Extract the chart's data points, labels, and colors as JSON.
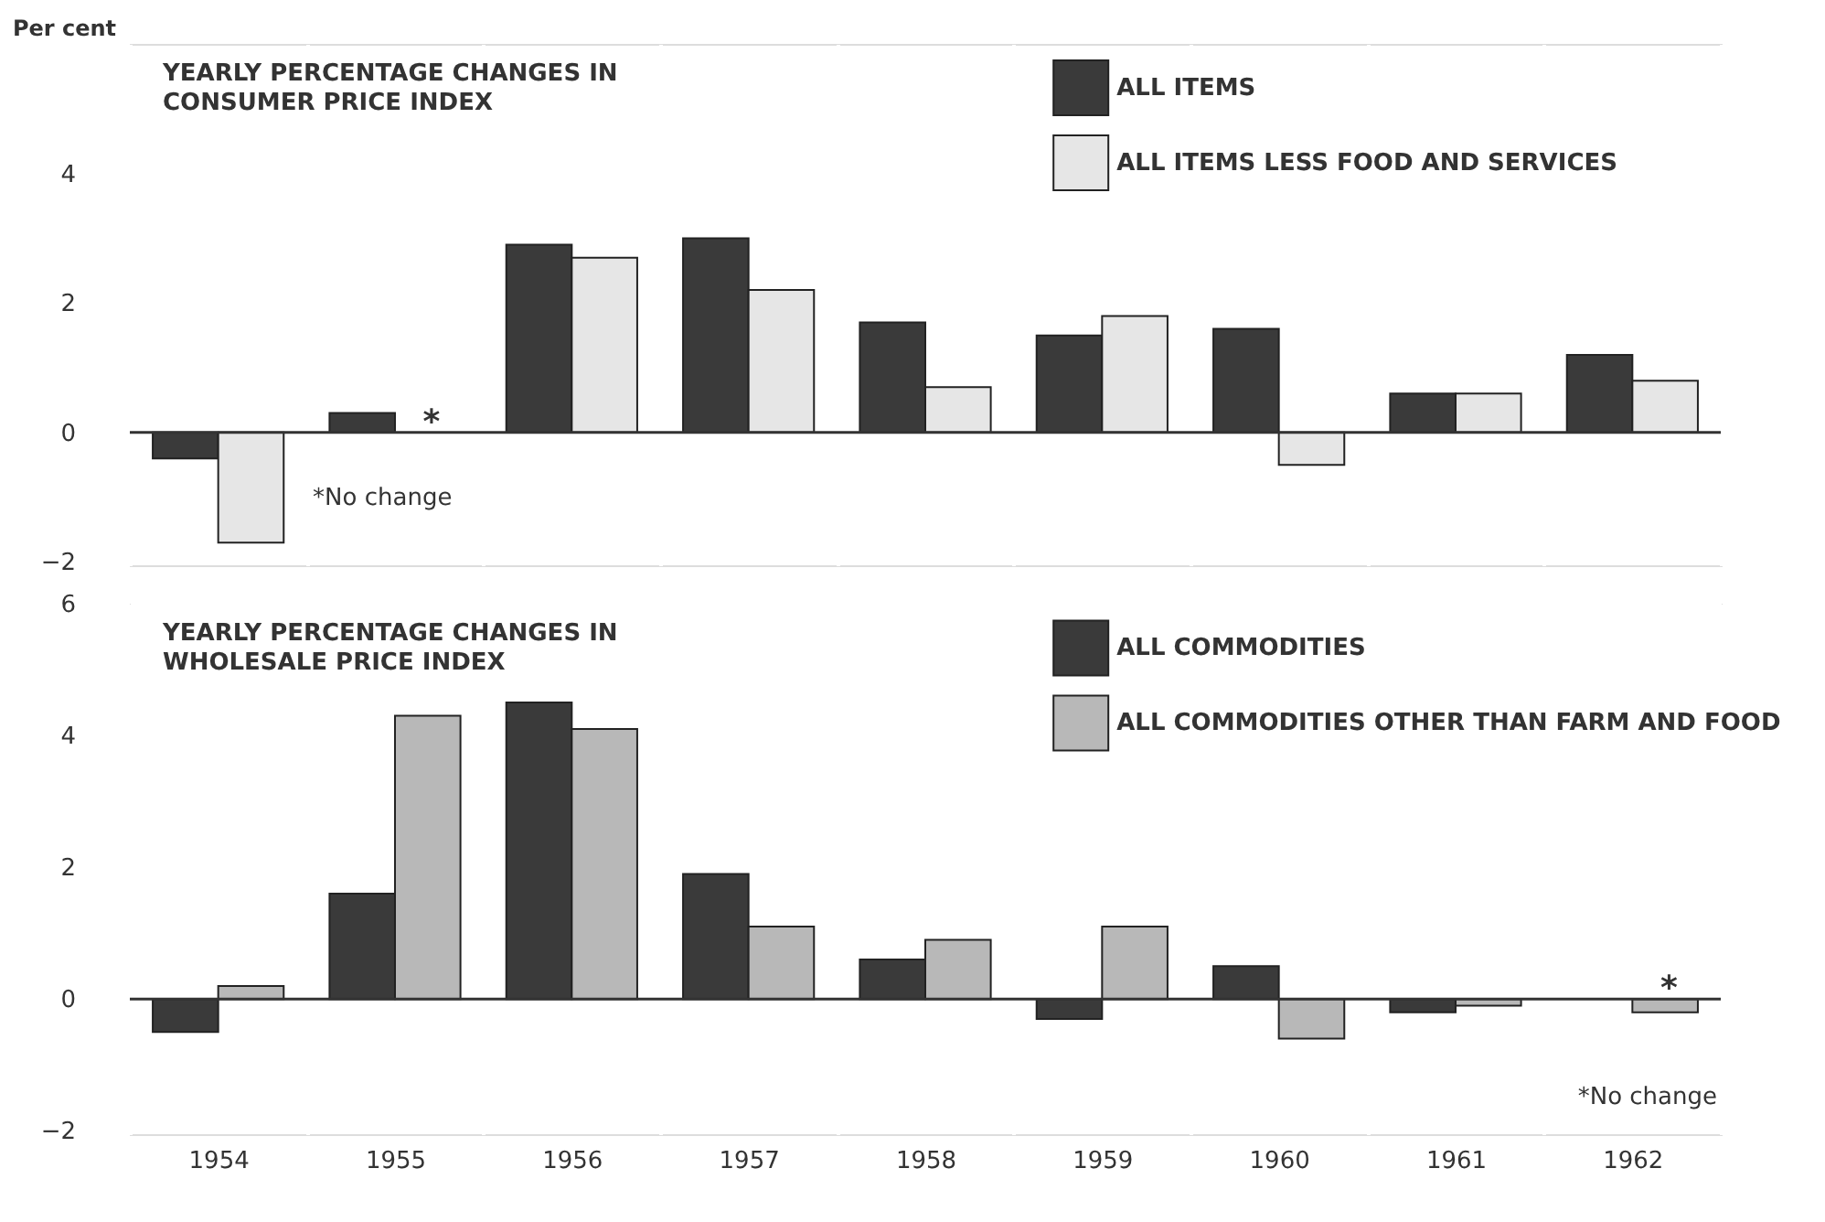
{
  "chart_data": [
    {
      "type": "bar",
      "title": "YEARLY PERCENTAGE CHANGES IN CONSUMER PRICE INDEX",
      "ylabel": "Per cent",
      "categories": [
        "1954",
        "1955",
        "1956",
        "1957",
        "1958",
        "1959",
        "1960",
        "1961",
        "1962"
      ],
      "series": [
        {
          "name": "ALL ITEMS",
          "color": "#3a3a3a",
          "values": [
            -0.4,
            0.3,
            2.9,
            3.0,
            1.7,
            1.5,
            1.6,
            0.6,
            1.2
          ]
        },
        {
          "name": "ALL ITEMS LESS FOOD AND SERVICES",
          "color": "#e6e6e6",
          "values": [
            -1.7,
            0,
            2.7,
            2.2,
            0.7,
            1.8,
            -0.5,
            0.6,
            0.8
          ]
        }
      ],
      "ylim": [
        -2.05,
        6
      ],
      "yticks": [
        -2,
        0,
        2,
        4
      ],
      "grid": true,
      "legend": "top",
      "tick_labels": "y",
      "ref_lines": [
        {
          "axis": "y",
          "value": 0,
          "color": "#333333"
        }
      ],
      "annotations": [
        {
          "text": "*",
          "x": "1955",
          "y": 0
        },
        "*No change"
      ]
    },
    {
      "type": "bar",
      "title": "YEARLY PERCENTAGE CHANGES IN WHOLESALE PRICE INDEX",
      "categories": [
        "1954",
        "1955",
        "1956",
        "1957",
        "1958",
        "1959",
        "1960",
        "1961",
        "1962"
      ],
      "series": [
        {
          "name": "ALL COMMODITIES",
          "color": "#3a3a3a",
          "values": [
            -0.5,
            1.6,
            4.5,
            1.9,
            0.6,
            -0.3,
            0.5,
            -0.2,
            0
          ]
        },
        {
          "name": "ALL COMMODITIES OTHER THAN FARM AND FOOD",
          "color": "#b8b8b8",
          "values": [
            0.2,
            4.3,
            4.1,
            1.1,
            0.9,
            1.1,
            -0.6,
            -0.1,
            -0.2
          ]
        }
      ],
      "ylim": [
        -2.05,
        6
      ],
      "yticks": [
        -2,
        0,
        2,
        4,
        6
      ],
      "grid": true,
      "legend": "top",
      "ref_lines": [
        {
          "axis": "y",
          "value": 0,
          "color": "#333333"
        }
      ],
      "annotations": [
        {
          "text": "*",
          "x": "1962",
          "y": 0
        },
        "*No change"
      ]
    }
  ]
}
